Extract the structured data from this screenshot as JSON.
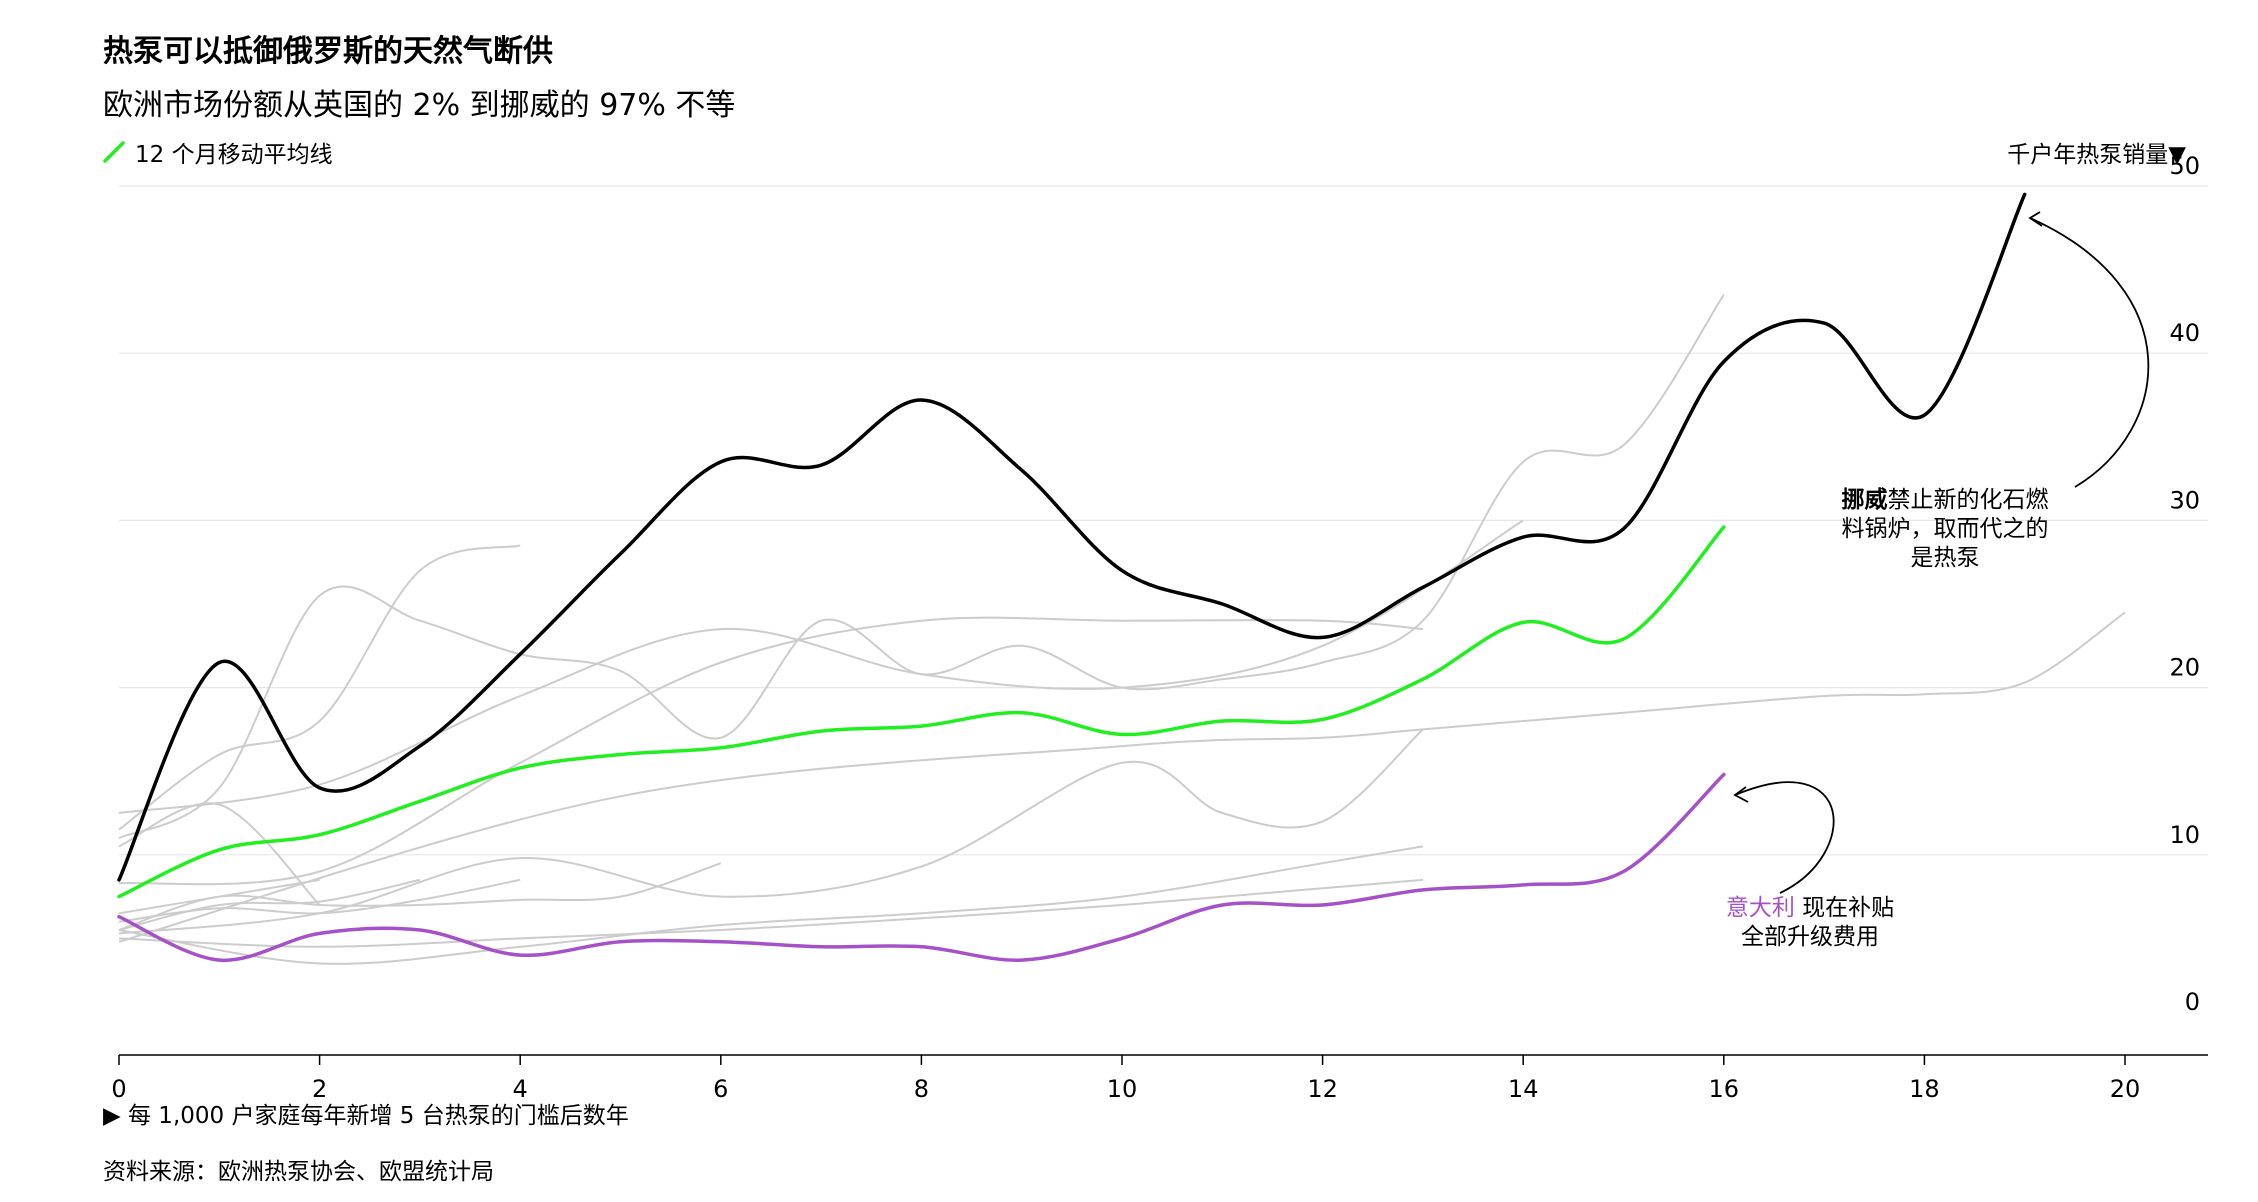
{
  "header": {
    "title": "热泵可以抵御俄罗斯的天然气断供",
    "subtitle": "欧洲市场份额从英国的 2% 到挪威的 97% 不等",
    "legend_label": "12 个月移动平均线",
    "y_unit": "千户年热泵销量▼"
  },
  "footer": {
    "x_label": "▶ 每 1,000 户家庭每年新增 5 台热泵的门槛后数年",
    "source": "资料来源：欧洲热泵协会、欧盟统计局"
  },
  "annotations": {
    "norway_bold": "挪威",
    "norway_rest": "禁止新的化石燃料锅炉，取而代之的是热泵",
    "norway_line1_rest": "禁止新的化石燃",
    "norway_line2": "料锅炉，取而代之的",
    "norway_line3": "是热泵",
    "italy_name": "意大利",
    "italy_line1_rest": " 现在补贴",
    "italy_line2": "全部升级费用"
  },
  "colors": {
    "norway": "#000000",
    "average": "#22ee22",
    "italy": "#a552c8",
    "others": "#cccccc",
    "grid": "#e6e6e6"
  },
  "chart_data": {
    "type": "line",
    "title": "热泵可以抵御俄罗斯的天然气断供",
    "xlabel": "▶ 每 1,000 户家庭每年新增 5 台热泵的门槛后数年",
    "ylabel": "千户年热泵销量",
    "xlim": [
      0,
      20.8
    ],
    "ylim": [
      -1.5,
      50
    ],
    "x_ticks": [
      0,
      2,
      4,
      6,
      8,
      10,
      12,
      14,
      16,
      18,
      20
    ],
    "y_ticks": [
      0,
      10,
      20,
      30,
      40,
      50
    ],
    "y_axis_side": "right",
    "series": [
      {
        "name": "挪威",
        "role": "highlight",
        "x": [
          0,
          1,
          2,
          3,
          4,
          5,
          6,
          7,
          8,
          9,
          10,
          11,
          12,
          13,
          14,
          15,
          16,
          17,
          18,
          19
        ],
        "values": [
          8.5,
          21.5,
          14.0,
          16.5,
          22.0,
          28.0,
          33.5,
          33.3,
          37.2,
          33.0,
          27.0,
          25.0,
          23.0,
          26.0,
          29.0,
          29.5,
          39.5,
          41.8,
          36.3,
          49.5
        ]
      },
      {
        "name": "12 个月移动平均线",
        "role": "average",
        "x": [
          0,
          1,
          2,
          3,
          4,
          5,
          6,
          7,
          8,
          9,
          10,
          11,
          12,
          13,
          14,
          15,
          16
        ],
        "values": [
          7.5,
          10.3,
          11.2,
          13.2,
          15.2,
          16.0,
          16.4,
          17.4,
          17.7,
          18.5,
          17.2,
          18.0,
          18.1,
          20.5,
          23.9,
          22.9,
          29.6
        ]
      },
      {
        "name": "意大利",
        "role": "highlight",
        "x": [
          0,
          1,
          2,
          3,
          4,
          5,
          6,
          7,
          8,
          9,
          10,
          11,
          12,
          13,
          14,
          15,
          16
        ],
        "values": [
          6.3,
          3.7,
          5.3,
          5.5,
          4.0,
          4.8,
          4.8,
          4.5,
          4.5,
          3.7,
          5.0,
          7.0,
          7.0,
          7.9,
          8.2,
          9.0,
          14.8
        ]
      },
      {
        "name": "other-1",
        "x": [
          0,
          2,
          4,
          6,
          8,
          10,
          12,
          14
        ],
        "values": [
          12.5,
          14.2,
          19.5,
          23.5,
          20.8,
          20.0,
          22.5,
          30.0
        ]
      },
      {
        "name": "other-2",
        "x": [
          0,
          1,
          2,
          3,
          4,
          5,
          6,
          7,
          8,
          9,
          10,
          11,
          12,
          13,
          14,
          15,
          16
        ],
        "values": [
          11.0,
          14.0,
          25.5,
          24.0,
          22.0,
          21.0,
          17.0,
          24.0,
          20.8,
          22.5,
          20.0,
          20.5,
          21.5,
          24.0,
          33.5,
          34.5,
          43.5
        ]
      },
      {
        "name": "other-3",
        "x": [
          0,
          1,
          2,
          3,
          4
        ],
        "values": [
          11.5,
          16.0,
          18.0,
          27.0,
          28.5
        ]
      },
      {
        "name": "other-4",
        "x": [
          0,
          2,
          4,
          6,
          8,
          10,
          12,
          13
        ],
        "values": [
          8.3,
          9.0,
          15.5,
          21.5,
          24.0,
          24.0,
          24.0,
          23.5
        ]
      },
      {
        "name": "other-5",
        "x": [
          0,
          1,
          2
        ],
        "values": [
          10.5,
          13.0,
          7.0
        ]
      },
      {
        "name": "other-6",
        "x": [
          0,
          2,
          4,
          6,
          8,
          10,
          11,
          12,
          13
        ],
        "values": [
          5.3,
          6.5,
          9.8,
          7.5,
          9.3,
          15.5,
          12.5,
          12.0,
          17.5
        ]
      },
      {
        "name": "other-7",
        "x": [
          0,
          5,
          10,
          12,
          13,
          15,
          17,
          18,
          19,
          20
        ],
        "values": [
          4.8,
          13.5,
          16.5,
          17.0,
          17.5,
          18.5,
          19.5,
          19.6,
          20.3,
          24.5
        ]
      },
      {
        "name": "other-8",
        "x": [
          0,
          2,
          4,
          6,
          8,
          10,
          12,
          13
        ],
        "values": [
          5.5,
          3.5,
          4.5,
          5.8,
          6.5,
          7.5,
          9.5,
          10.5
        ]
      },
      {
        "name": "other-9",
        "x": [
          0,
          1,
          2,
          3
        ],
        "values": [
          5.5,
          7.0,
          7.2,
          8.5
        ]
      },
      {
        "name": "other-10",
        "x": [
          0,
          1,
          2,
          3,
          4
        ],
        "values": [
          6.0,
          6.8,
          6.5,
          7.3,
          8.5
        ]
      },
      {
        "name": "other-11",
        "x": [
          0,
          1,
          2,
          3,
          4,
          5,
          6
        ],
        "values": [
          5.5,
          7.5,
          7.0,
          7.0,
          7.3,
          7.5,
          9.5
        ]
      },
      {
        "name": "other-12",
        "x": [
          0,
          1,
          2
        ],
        "values": [
          6.5,
          7.5,
          8.5
        ]
      },
      {
        "name": "other-13",
        "x": [
          0,
          2,
          4,
          6,
          8,
          10,
          12,
          13
        ],
        "values": [
          5.0,
          4.5,
          5.0,
          5.5,
          6.2,
          7.0,
          8.0,
          8.5
        ]
      }
    ]
  }
}
